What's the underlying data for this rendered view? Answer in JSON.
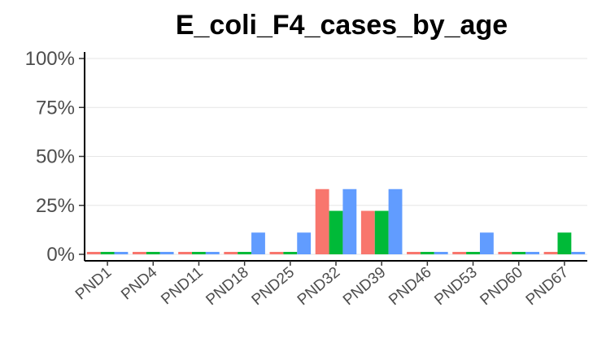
{
  "chart_data": {
    "type": "bar",
    "title": "E_coli_F4_cases_by_age",
    "xlabel": "",
    "ylabel": "",
    "categories": [
      "PND1",
      "PND4",
      "PND11",
      "PND18",
      "PND25",
      "PND32",
      "PND39",
      "PND46",
      "PND53",
      "PND60",
      "PND67"
    ],
    "y_ticks": [
      "0%",
      "25%",
      "50%",
      "75%",
      "100%"
    ],
    "ylim": [
      0,
      1
    ],
    "grid": "horizontal",
    "legend": "none",
    "series": [
      {
        "color": "#F8766D",
        "values": [
          0,
          0,
          0,
          0,
          0,
          0.333,
          0.222,
          0,
          0,
          0,
          0
        ]
      },
      {
        "color": "#00BA38",
        "values": [
          0,
          0,
          0,
          0,
          0,
          0.222,
          0.222,
          0,
          0,
          0,
          0.111
        ]
      },
      {
        "color": "#619CFF",
        "values": [
          0,
          0,
          0,
          0.111,
          0.111,
          0.333,
          0.333,
          0,
          0.111,
          0,
          0
        ]
      }
    ]
  }
}
